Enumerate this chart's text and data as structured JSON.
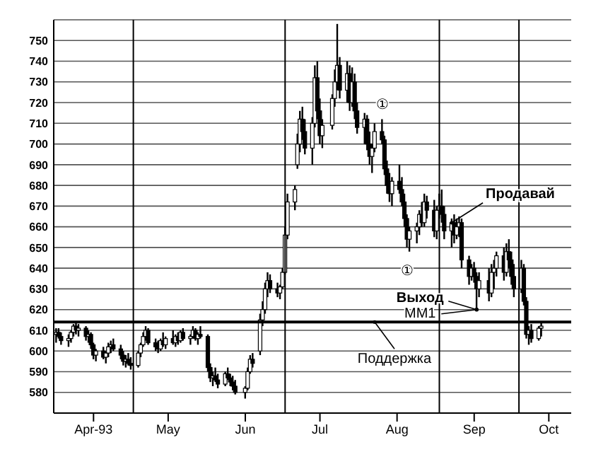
{
  "chart_data": {
    "type": "candlestick",
    "color": "#000000",
    "x": [
      "1993-03-17",
      "1993-03-18",
      "1993-03-19",
      "1993-03-22",
      "1993-03-23",
      "1993-03-24",
      "1993-03-25",
      "1993-03-26",
      "1993-03-29",
      "1993-03-30",
      "1993-03-31",
      "1993-04-01",
      "1993-04-02",
      "1993-04-05",
      "1993-04-06",
      "1993-04-07",
      "1993-04-08",
      "1993-04-09",
      "1993-04-12",
      "1993-04-13",
      "1993-04-14",
      "1993-04-15",
      "1993-04-16",
      "1993-04-19",
      "1993-04-20",
      "1993-04-21",
      "1993-04-22",
      "1993-04-23",
      "1993-04-26",
      "1993-04-27",
      "1993-04-28",
      "1993-04-29",
      "1993-04-30",
      "1993-05-03",
      "1993-05-04",
      "1993-05-05",
      "1993-05-06",
      "1993-05-07",
      "1993-05-10",
      "1993-05-11",
      "1993-05-12",
      "1993-05-13",
      "1993-05-14",
      "1993-05-17",
      "1993-05-18",
      "1993-05-19",
      "1993-05-20",
      "1993-05-21",
      "1993-05-24",
      "1993-05-25",
      "1993-05-26",
      "1993-05-27",
      "1993-05-28",
      "1993-06-01",
      "1993-06-02",
      "1993-06-03",
      "1993-06-04",
      "1993-06-07",
      "1993-06-08",
      "1993-06-09",
      "1993-06-10",
      "1993-06-11",
      "1993-06-14",
      "1993-06-15",
      "1993-06-16",
      "1993-06-17",
      "1993-06-18",
      "1993-06-21",
      "1993-06-22",
      "1993-06-23",
      "1993-06-24",
      "1993-06-25",
      "1993-06-28",
      "1993-06-29",
      "1993-06-30",
      "1993-07-01",
      "1993-07-02",
      "1993-07-06",
      "1993-07-07",
      "1993-07-08",
      "1993-07-09",
      "1993-07-12",
      "1993-07-13",
      "1993-07-14",
      "1993-07-15",
      "1993-07-16",
      "1993-07-19",
      "1993-07-20",
      "1993-07-21",
      "1993-07-22",
      "1993-07-23",
      "1993-07-26",
      "1993-07-27",
      "1993-07-28",
      "1993-07-29",
      "1993-07-30",
      "1993-08-02",
      "1993-08-03",
      "1993-08-04",
      "1993-08-05",
      "1993-08-06",
      "1993-08-09",
      "1993-08-10",
      "1993-08-11",
      "1993-08-12",
      "1993-08-13",
      "1993-08-16",
      "1993-08-17",
      "1993-08-18",
      "1993-08-19",
      "1993-08-20",
      "1993-08-23",
      "1993-08-24",
      "1993-08-25",
      "1993-08-26",
      "1993-08-27",
      "1993-08-30",
      "1993-08-31",
      "1993-09-01",
      "1993-09-02",
      "1993-09-03",
      "1993-09-07",
      "1993-09-08",
      "1993-09-09",
      "1993-09-10",
      "1993-09-13",
      "1993-09-14",
      "1993-09-15",
      "1993-09-16",
      "1993-09-17",
      "1993-09-20",
      "1993-09-21",
      "1993-09-22",
      "1993-09-23",
      "1993-09-24",
      "1993-09-27",
      "1993-09-28"
    ],
    "ohlc": [
      [
        608,
        611,
        604,
        609
      ],
      [
        609,
        611,
        606,
        607
      ],
      [
        607,
        609,
        603,
        605
      ],
      [
        605,
        608,
        602,
        606
      ],
      [
        606,
        610,
        604,
        609
      ],
      [
        609,
        613,
        607,
        612
      ],
      [
        612,
        614,
        608,
        610
      ],
      [
        610,
        613,
        607,
        611
      ],
      [
        611,
        612,
        605,
        607
      ],
      [
        607,
        610,
        604,
        608
      ],
      [
        608,
        609,
        601,
        603
      ],
      [
        603,
        604,
        596,
        598
      ],
      [
        598,
        601,
        595,
        600
      ],
      [
        600,
        602,
        596,
        597
      ],
      [
        597,
        600,
        594,
        599
      ],
      [
        599,
        604,
        597,
        602
      ],
      [
        602,
        605,
        599,
        603
      ],
      [
        603,
        606,
        600,
        601
      ],
      [
        601,
        603,
        596,
        598
      ],
      [
        598,
        600,
        593,
        595
      ],
      [
        595,
        598,
        592,
        596
      ],
      [
        596,
        599,
        593,
        594
      ],
      [
        594,
        597,
        591,
        593
      ],
      [
        593,
        600,
        592,
        599
      ],
      [
        599,
        604,
        597,
        603
      ],
      [
        603,
        609,
        602,
        607
      ],
      [
        607,
        612,
        605,
        610
      ],
      [
        610,
        611,
        603,
        604
      ],
      [
        604,
        606,
        600,
        602
      ],
      [
        602,
        605,
        599,
        601
      ],
      [
        601,
        606,
        600,
        605
      ],
      [
        605,
        609,
        602,
        603
      ],
      [
        603,
        607,
        601,
        606
      ],
      [
        606,
        610,
        603,
        604
      ],
      [
        604,
        608,
        602,
        607
      ],
      [
        607,
        609,
        603,
        605
      ],
      [
        605,
        610,
        604,
        609
      ],
      [
        609,
        611,
        605,
        606
      ],
      [
        606,
        608,
        603,
        607
      ],
      [
        607,
        612,
        606,
        610
      ],
      [
        610,
        611,
        605,
        606
      ],
      [
        606,
        609,
        603,
        608
      ],
      [
        608,
        612,
        606,
        607
      ],
      [
        607,
        608,
        590,
        592
      ],
      [
        592,
        594,
        585,
        587
      ],
      [
        587,
        590,
        583,
        588
      ],
      [
        588,
        592,
        585,
        586
      ],
      [
        586,
        589,
        582,
        584
      ],
      [
        584,
        590,
        583,
        589
      ],
      [
        589,
        592,
        586,
        587
      ],
      [
        587,
        589,
        583,
        585
      ],
      [
        585,
        588,
        581,
        583
      ],
      [
        583,
        586,
        579,
        580
      ],
      [
        580,
        583,
        577,
        582
      ],
      [
        582,
        592,
        581,
        590
      ],
      [
        590,
        598,
        589,
        596
      ],
      [
        596,
        599,
        592,
        594
      ],
      [
        600,
        618,
        598,
        615
      ],
      [
        615,
        624,
        612,
        620
      ],
      [
        620,
        633,
        618,
        630
      ],
      [
        630,
        638,
        626,
        634
      ],
      [
        634,
        637,
        628,
        630
      ],
      [
        630,
        633,
        626,
        628
      ],
      [
        628,
        632,
        625,
        631
      ],
      [
        631,
        640,
        630,
        638
      ],
      [
        638,
        660,
        637,
        656
      ],
      [
        656,
        676,
        654,
        672
      ],
      [
        672,
        680,
        668,
        678
      ],
      [
        690,
        705,
        688,
        700
      ],
      [
        700,
        716,
        696,
        712
      ],
      [
        712,
        718,
        702,
        706
      ],
      [
        706,
        712,
        695,
        698
      ],
      [
        698,
        713,
        690,
        710
      ],
      [
        710,
        738,
        708,
        732
      ],
      [
        732,
        740,
        712,
        716
      ],
      [
        716,
        722,
        700,
        704
      ],
      [
        704,
        712,
        698,
        709
      ],
      [
        709,
        724,
        707,
        722
      ],
      [
        722,
        736,
        718,
        730
      ],
      [
        730,
        758,
        726,
        738
      ],
      [
        738,
        742,
        722,
        726
      ],
      [
        726,
        740,
        720,
        734
      ],
      [
        734,
        738,
        716,
        720
      ],
      [
        720,
        737,
        718,
        730
      ],
      [
        730,
        734,
        712,
        716
      ],
      [
        716,
        720,
        705,
        708
      ],
      [
        708,
        715,
        700,
        712
      ],
      [
        712,
        714,
        697,
        700
      ],
      [
        700,
        706,
        690,
        694
      ],
      [
        694,
        700,
        686,
        698
      ],
      [
        698,
        710,
        696,
        706
      ],
      [
        706,
        712,
        700,
        702
      ],
      [
        702,
        704,
        685,
        688
      ],
      [
        688,
        692,
        676,
        680
      ],
      [
        680,
        686,
        672,
        676
      ],
      [
        676,
        684,
        670,
        682
      ],
      [
        682,
        690,
        676,
        678
      ],
      [
        678,
        684,
        670,
        672
      ],
      [
        672,
        676,
        660,
        664
      ],
      [
        664,
        666,
        650,
        654
      ],
      [
        654,
        660,
        648,
        658
      ],
      [
        658,
        662,
        652,
        660
      ],
      [
        660,
        668,
        656,
        666
      ],
      [
        666,
        672,
        660,
        662
      ],
      [
        662,
        676,
        660,
        672
      ],
      [
        672,
        675,
        664,
        668
      ],
      [
        668,
        673,
        655,
        658
      ],
      [
        658,
        670,
        654,
        668
      ],
      [
        668,
        676,
        664,
        670
      ],
      [
        670,
        678,
        662,
        666
      ],
      [
        666,
        670,
        654,
        658
      ],
      [
        658,
        664,
        650,
        662
      ],
      [
        662,
        666,
        652,
        656
      ],
      [
        656,
        664,
        654,
        660
      ],
      [
        660,
        665,
        655,
        662
      ],
      [
        662,
        664,
        640,
        644
      ],
      [
        644,
        646,
        632,
        636
      ],
      [
        636,
        642,
        634,
        640
      ],
      [
        640,
        643,
        633,
        636
      ],
      [
        636,
        638,
        620,
        630
      ],
      [
        630,
        638,
        626,
        634
      ],
      [
        634,
        640,
        624,
        628
      ],
      [
        628,
        642,
        626,
        638
      ],
      [
        638,
        644,
        630,
        640
      ],
      [
        640,
        648,
        636,
        646
      ],
      [
        646,
        650,
        634,
        638
      ],
      [
        638,
        652,
        636,
        648
      ],
      [
        648,
        654,
        640,
        644
      ],
      [
        644,
        648,
        632,
        636
      ],
      [
        636,
        642,
        626,
        630
      ],
      [
        630,
        644,
        628,
        640
      ],
      [
        640,
        642,
        622,
        624
      ],
      [
        624,
        626,
        606,
        608
      ],
      [
        608,
        612,
        603,
        610
      ],
      [
        610,
        613,
        604,
        606
      ],
      [
        606,
        612,
        605,
        611
      ],
      [
        611,
        614,
        607,
        612
      ]
    ],
    "xlim": [
      "1993-03-16",
      "1993-10-10"
    ],
    "xticks": [
      {
        "value": "1993-04-01",
        "label": "Apr-93"
      },
      {
        "value": "1993-05-01",
        "label": "May"
      },
      {
        "value": "1993-06-01",
        "label": "Jun"
      },
      {
        "value": "1993-07-01",
        "label": "Jul"
      },
      {
        "value": "1993-08-01",
        "label": "Aug"
      },
      {
        "value": "1993-09-01",
        "label": "Sep"
      },
      {
        "value": "1993-10-01",
        "label": "Oct"
      }
    ],
    "ylim": [
      570,
      760
    ],
    "yticks": [
      580,
      590,
      600,
      610,
      620,
      630,
      640,
      650,
      660,
      670,
      680,
      690,
      700,
      710,
      720,
      730,
      740,
      750
    ],
    "grid": "y",
    "ref_lines": [
      {
        "axis": "x",
        "value": "1993-04-17",
        "color": "#000000"
      },
      {
        "axis": "x",
        "value": "1993-06-17",
        "color": "#000000"
      },
      {
        "axis": "x",
        "value": "1993-08-18",
        "color": "#000000"
      },
      {
        "axis": "x",
        "value": "1993-09-19",
        "color": "#000000"
      },
      {
        "axis": "y",
        "value": 614,
        "color": "#000000"
      }
    ],
    "annotations": [
      {
        "text": "①",
        "x": "1993-07-26",
        "y": 712
      },
      {
        "text": "①",
        "x": "1993-08-05",
        "y": 648
      },
      {
        "text": "Продавай",
        "x": "1993-08-23",
        "y": 662
      },
      {
        "text": "Выход",
        "x": "1993-09-02",
        "y": 620
      },
      {
        "text": "MM1",
        "x": "1993-09-02",
        "y": 620
      },
      {
        "text": "Поддержка",
        "x": "1993-07-23",
        "y": 614
      }
    ]
  }
}
